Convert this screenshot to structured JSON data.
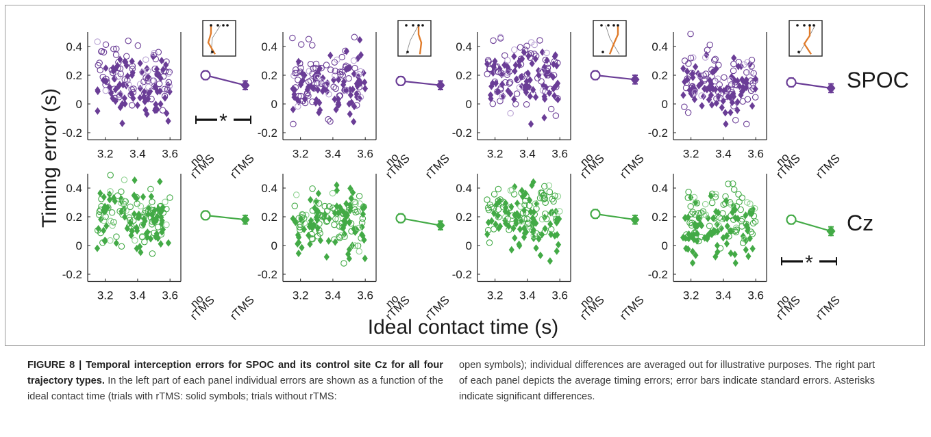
{
  "figure": {
    "ylabel": "Timing error (s)",
    "xlabel": "Ideal contact time (s)",
    "rows": [
      {
        "label": "SPOC",
        "color": "#6a3d96",
        "light": "#b9a3d4"
      },
      {
        "label": "Cz",
        "color": "#43aa46",
        "light": "#8fd291"
      }
    ],
    "x_ticks": [
      "3.2",
      "3.4",
      "3.6"
    ],
    "y_ticks": [
      "0.4",
      "0.2",
      "0",
      "-0.2"
    ],
    "cond_labels": {
      "no": "no",
      "no_line2": "rTMS",
      "yes": "rTMS"
    },
    "star": "*",
    "icons": [
      "trajectory-icon-1",
      "trajectory-icon-2",
      "trajectory-icon-3",
      "trajectory-icon-4"
    ]
  },
  "chart_data": {
    "type": "scatter",
    "x_label": "Ideal contact time (s)",
    "y_label": "Timing error (s)",
    "xlim": [
      3.1,
      3.65
    ],
    "ylim": [
      -0.25,
      0.5
    ],
    "legend": "none",
    "grid": false,
    "means": {
      "categories": [
        "no rTMS",
        "rTMS"
      ],
      "series": [
        {
          "name": "SPOC",
          "panel": 1,
          "values": [
            0.2,
            0.13
          ],
          "se": [
            0.03,
            0.03
          ],
          "significant": true
        },
        {
          "name": "SPOC",
          "panel": 2,
          "values": [
            0.16,
            0.13
          ],
          "se": [
            0.03,
            0.03
          ],
          "significant": false
        },
        {
          "name": "SPOC",
          "panel": 3,
          "values": [
            0.2,
            0.17
          ],
          "se": [
            0.03,
            0.03
          ],
          "significant": false
        },
        {
          "name": "SPOC",
          "panel": 4,
          "values": [
            0.15,
            0.11
          ],
          "se": [
            0.03,
            0.03
          ],
          "significant": false
        },
        {
          "name": "Cz",
          "panel": 1,
          "values": [
            0.21,
            0.18
          ],
          "se": [
            0.03,
            0.03
          ],
          "significant": false
        },
        {
          "name": "Cz",
          "panel": 2,
          "values": [
            0.19,
            0.14
          ],
          "se": [
            0.03,
            0.03
          ],
          "significant": false
        },
        {
          "name": "Cz",
          "panel": 3,
          "values": [
            0.22,
            0.18
          ],
          "se": [
            0.03,
            0.03
          ],
          "significant": false
        },
        {
          "name": "Cz",
          "panel": 4,
          "values": [
            0.18,
            0.1
          ],
          "se": [
            0.03,
            0.03
          ],
          "significant": true
        }
      ]
    },
    "scatter": {
      "n_per_condition": 75,
      "x_range": [
        3.15,
        3.6
      ],
      "spread_sd": 0.11,
      "symbols": {
        "rTMS": "solid diamond",
        "no rTMS": "open circle"
      }
    }
  },
  "caption": {
    "left": {
      "bold": "FIGURE 8 | Temporal interception errors for SPOC and its control site Cz for all four trajectory types.",
      "text": " In the left part of each panel individual errors are shown as a function of the ideal contact time (trials with rTMS: solid symbols; trials without rTMS:"
    },
    "right": {
      "text": "open symbols); individual differences are averaged out for illustrative purposes. The right part of each panel depicts the average timing errors; error bars indicate standard errors. Asterisks indicate significant differences."
    }
  }
}
